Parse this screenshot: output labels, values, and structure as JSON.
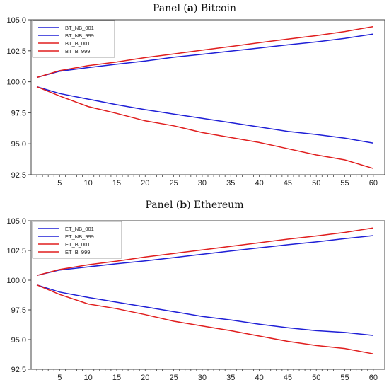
{
  "chart_data": [
    {
      "type": "line",
      "title_prefix": "Panel (",
      "title_letter": "a",
      "title_suffix": ") Bitcoin",
      "xlabel": "",
      "ylabel": "",
      "xlim": [
        0,
        62
      ],
      "ylim": [
        92.5,
        105.0
      ],
      "xticks": [
        5,
        10,
        15,
        20,
        25,
        30,
        35,
        40,
        45,
        50,
        55,
        60
      ],
      "yticks": [
        92.5,
        95.0,
        97.5,
        100.0,
        102.5,
        105.0
      ],
      "ytick_labels": [
        "92.5",
        "95.0",
        "97.5",
        "100.0",
        "102.5",
        "105.0"
      ],
      "legend_position": "top-left",
      "grid": false,
      "series": [
        {
          "name": "BT_NB_001",
          "color": "#1f1fd6",
          "x": [
            1,
            5,
            10,
            15,
            20,
            25,
            30,
            35,
            40,
            45,
            50,
            55,
            60
          ],
          "values": [
            100.35,
            100.85,
            101.15,
            101.42,
            101.68,
            101.98,
            102.22,
            102.48,
            102.72,
            102.98,
            103.22,
            103.5,
            103.85
          ]
        },
        {
          "name": "BT_NB_999",
          "color": "#1f1fd6",
          "x": [
            1,
            5,
            10,
            15,
            20,
            25,
            30,
            35,
            40,
            45,
            50,
            55,
            60
          ],
          "values": [
            99.6,
            99.05,
            98.6,
            98.15,
            97.75,
            97.4,
            97.05,
            96.7,
            96.35,
            96.0,
            95.75,
            95.45,
            95.05
          ]
        },
        {
          "name": "BT_B_001",
          "color": "#e01e1e",
          "x": [
            1,
            5,
            10,
            15,
            20,
            25,
            30,
            35,
            40,
            45,
            50,
            55,
            60
          ],
          "values": [
            100.35,
            100.9,
            101.3,
            101.6,
            101.95,
            102.25,
            102.55,
            102.85,
            103.15,
            103.45,
            103.72,
            104.05,
            104.45
          ]
        },
        {
          "name": "BT_B_999",
          "color": "#e01e1e",
          "x": [
            1,
            5,
            10,
            15,
            20,
            25,
            30,
            35,
            40,
            45,
            50,
            55,
            60
          ],
          "values": [
            99.6,
            98.85,
            98.0,
            97.45,
            96.85,
            96.45,
            95.9,
            95.5,
            95.1,
            94.6,
            94.1,
            93.7,
            93.0
          ]
        }
      ]
    },
    {
      "type": "line",
      "title_prefix": "Panel (",
      "title_letter": "b",
      "title_suffix": ") Ethereum",
      "xlabel": "",
      "ylabel": "",
      "xlim": [
        0,
        62
      ],
      "ylim": [
        92.5,
        105.0
      ],
      "xticks": [
        5,
        10,
        15,
        20,
        25,
        30,
        35,
        40,
        45,
        50,
        55,
        60
      ],
      "yticks": [
        92.5,
        95.0,
        97.5,
        100.0,
        102.5,
        105.0
      ],
      "ytick_labels": [
        "92.5",
        "95.0",
        "97.5",
        "100.0",
        "102.5",
        "105.0"
      ],
      "legend_position": "top-left",
      "grid": false,
      "series": [
        {
          "name": "ET_NB_001",
          "color": "#1f1fd6",
          "x": [
            1,
            5,
            10,
            15,
            20,
            25,
            30,
            35,
            40,
            45,
            50,
            55,
            60
          ],
          "values": [
            100.4,
            100.85,
            101.12,
            101.38,
            101.62,
            101.9,
            102.18,
            102.45,
            102.72,
            102.98,
            103.22,
            103.5,
            103.75
          ]
        },
        {
          "name": "ET_NB_999",
          "color": "#1f1fd6",
          "x": [
            1,
            5,
            10,
            15,
            20,
            25,
            30,
            35,
            40,
            45,
            50,
            55,
            60
          ],
          "values": [
            99.6,
            99.0,
            98.55,
            98.15,
            97.75,
            97.35,
            96.95,
            96.65,
            96.3,
            96.0,
            95.75,
            95.6,
            95.35
          ]
        },
        {
          "name": "ET_B_001",
          "color": "#e01e1e",
          "x": [
            1,
            5,
            10,
            15,
            20,
            25,
            30,
            35,
            40,
            45,
            50,
            55,
            60
          ],
          "values": [
            100.4,
            100.9,
            101.3,
            101.6,
            101.95,
            102.25,
            102.55,
            102.85,
            103.15,
            103.45,
            103.72,
            104.02,
            104.4
          ]
        },
        {
          "name": "ET_B_999",
          "color": "#e01e1e",
          "x": [
            1,
            5,
            10,
            15,
            20,
            25,
            30,
            35,
            40,
            45,
            50,
            55,
            60
          ],
          "values": [
            99.6,
            98.8,
            98.0,
            97.6,
            97.1,
            96.55,
            96.15,
            95.75,
            95.3,
            94.85,
            94.5,
            94.25,
            93.8
          ]
        }
      ]
    }
  ]
}
